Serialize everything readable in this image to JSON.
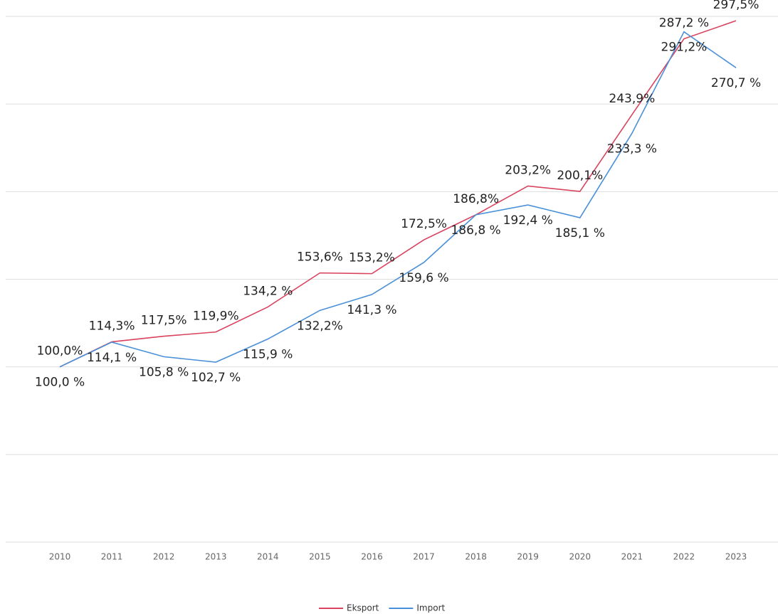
{
  "chart_data": {
    "type": "line",
    "categories": [
      "2010",
      "2011",
      "2012",
      "2013",
      "2014",
      "2015",
      "2016",
      "2017",
      "2018",
      "2019",
      "2020",
      "2021",
      "2022",
      "2023"
    ],
    "series": [
      {
        "name": "Eksport",
        "color": "#d9435e",
        "values": [
          100.0,
          114.3,
          117.5,
          119.9,
          134.2,
          153.6,
          153.2,
          172.5,
          186.8,
          203.2,
          200.1,
          243.9,
          287.2,
          297.5
        ],
        "value_labels": [
          "100,0%",
          "114,3%",
          "117,5%",
          "119,9%",
          "134,2 %",
          "153,6%",
          "153,2%",
          "172,5%",
          "186,8%",
          "203,2%",
          "200,1%",
          "243,9%",
          "287,2 %",
          "297,5%"
        ]
      },
      {
        "name": "Import",
        "color": "#4a90d9",
        "values": [
          100.0,
          114.1,
          105.8,
          102.7,
          115.9,
          132.2,
          141.3,
          159.6,
          186.8,
          192.4,
          185.1,
          233.3,
          291.2,
          270.7
        ],
        "value_labels": [
          "100,0 %",
          "114,1 %",
          "105,8 %",
          "102,7 %",
          "115,9 %",
          "132,2%",
          "141,3 %",
          "159,6 %",
          "186,8 %",
          "192,4 %",
          "185,1 %",
          "233,3 %",
          "291,2%",
          "270,7 %"
        ]
      }
    ],
    "ylim": [
      0,
      300
    ],
    "yticks": [
      0,
      50,
      100,
      150,
      200,
      250,
      300
    ],
    "grid": true
  }
}
